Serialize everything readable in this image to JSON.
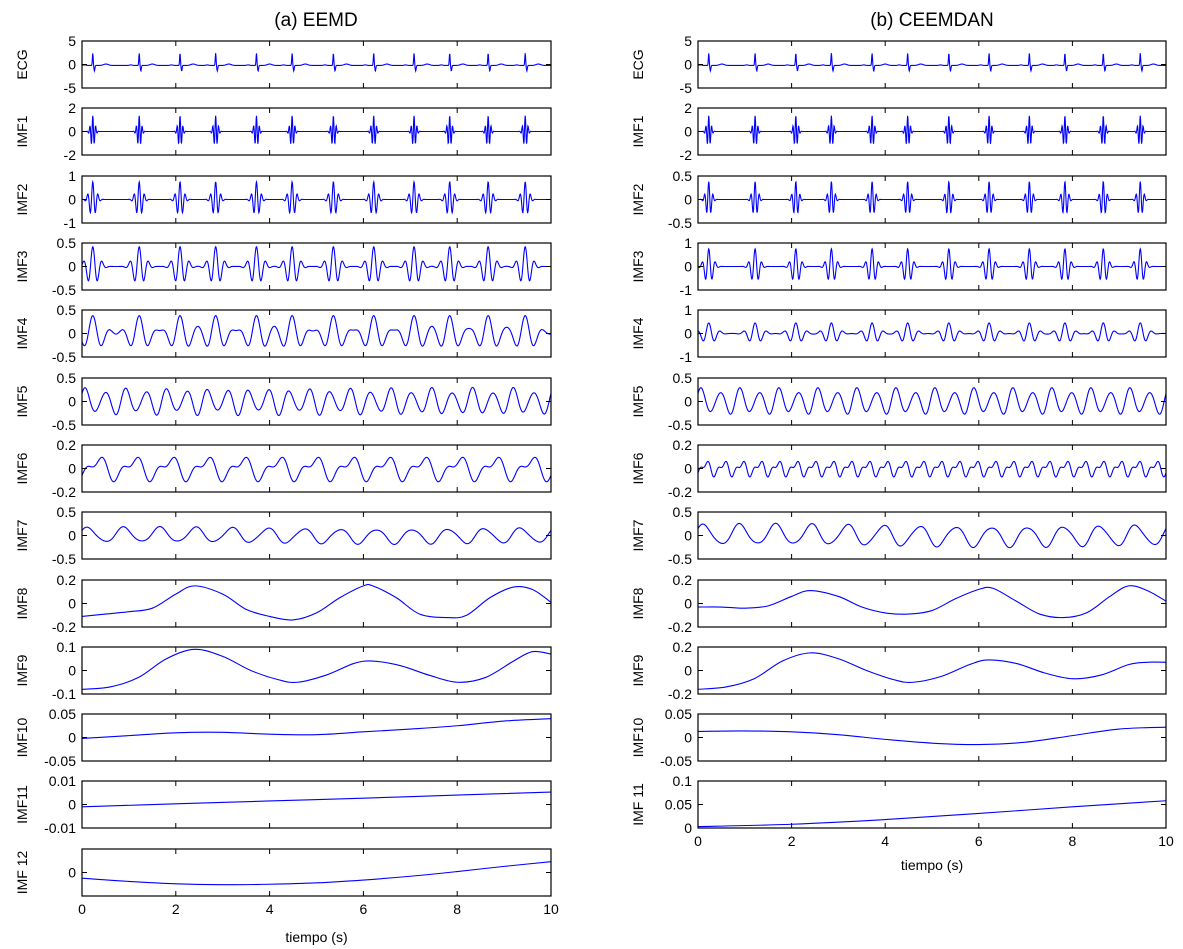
{
  "chart_data": [
    {
      "type": "line",
      "title": "(a) EEMD",
      "xlabel": "tiempo (s)",
      "xlim": [
        0,
        10
      ],
      "xticks": [
        "0",
        "2",
        "4",
        "6",
        "8",
        "10"
      ],
      "line_color": "#0000ff",
      "beat_times": [
        0.23,
        1.22,
        2.09,
        2.85,
        3.72,
        4.48,
        5.36,
        6.22,
        7.08,
        7.84,
        8.66,
        9.45
      ],
      "subplots": [
        {
          "ylabel": "ECG",
          "ylim": [
            -5,
            5
          ],
          "yticks": [
            "5",
            "0",
            "-5"
          ],
          "kind": "ecg",
          "amplitude": 2.6,
          "baseline": -0.2
        },
        {
          "ylabel": "IMF1",
          "ylim": [
            -2,
            2
          ],
          "yticks": [
            "2",
            "0",
            "-2"
          ],
          "kind": "burst",
          "amplitude": 1.35,
          "freq_hz": 16,
          "width_s": 0.06
        },
        {
          "ylabel": "IMF2",
          "ylim": [
            -1,
            1
          ],
          "yticks": [
            "1",
            "0",
            "-1"
          ],
          "kind": "burst",
          "amplitude": 0.75,
          "freq_hz": 9,
          "width_s": 0.1
        },
        {
          "ylabel": "IMF3",
          "ylim": [
            -0.5,
            0.5
          ],
          "yticks": [
            "0.5",
            "0",
            "-0.5"
          ],
          "kind": "burst",
          "amplitude": 0.42,
          "freq_hz": 5,
          "width_s": 0.17
        },
        {
          "ylabel": "IMF4",
          "ylim": [
            -0.5,
            0.5
          ],
          "yticks": [
            "0.5",
            "0",
            "-0.5"
          ],
          "kind": "burst",
          "amplitude": 0.38,
          "freq_hz": 2.6,
          "width_s": 0.3
        },
        {
          "ylabel": "IMF5",
          "ylim": [
            -0.5,
            0.5
          ],
          "yticks": [
            "0.5",
            "0",
            "-0.5"
          ],
          "kind": "wave",
          "amplitude": 0.3,
          "freq_hz": 2.3
        },
        {
          "ylabel": "IMF6",
          "ylim": [
            -0.2,
            0.2
          ],
          "yticks": [
            "0.2",
            "0",
            "-0.2"
          ],
          "kind": "wave2",
          "amplitude": 0.11,
          "freq_hz": 1.3
        },
        {
          "ylabel": "IMF7",
          "ylim": [
            -0.5,
            0.5
          ],
          "yticks": [
            "0.5",
            "0",
            "-0.5"
          ],
          "kind": "wave",
          "amplitude": 0.19,
          "freq_hz": 1.3
        },
        {
          "ylabel": "IMF8",
          "kind": "curve",
          "ylim": [
            -0.2,
            0.2
          ],
          "yticks": [
            "0.2",
            "0",
            "-0.2"
          ],
          "x": [
            0,
            0.5,
            1.0,
            1.5,
            2.0,
            2.4,
            3.0,
            3.5,
            4.0,
            4.5,
            5.0,
            5.5,
            6.0,
            6.2,
            6.7,
            7.2,
            7.8,
            8.2,
            8.7,
            9.2,
            9.6,
            10
          ],
          "y": [
            -0.11,
            -0.09,
            -0.07,
            -0.04,
            0.08,
            0.15,
            0.08,
            -0.05,
            -0.11,
            -0.14,
            -0.08,
            0.05,
            0.15,
            0.15,
            0.05,
            -0.09,
            -0.12,
            -0.1,
            0.05,
            0.14,
            0.12,
            0.01
          ]
        },
        {
          "ylabel": "IMF9",
          "kind": "curve",
          "ylim": [
            -0.1,
            0.1
          ],
          "yticks": [
            "0.1",
            "0",
            "-0.1"
          ],
          "x": [
            0,
            0.6,
            1.2,
            1.8,
            2.4,
            3.0,
            3.6,
            4.2,
            4.6,
            5.2,
            5.8,
            6.2,
            6.8,
            7.4,
            8.0,
            8.6,
            9.2,
            9.6,
            10
          ],
          "y": [
            -0.08,
            -0.07,
            -0.03,
            0.05,
            0.09,
            0.06,
            0.0,
            -0.04,
            -0.05,
            -0.02,
            0.03,
            0.04,
            0.02,
            -0.02,
            -0.05,
            -0.03,
            0.04,
            0.08,
            0.07
          ]
        },
        {
          "ylabel": "IMF10",
          "kind": "curve",
          "ylim": [
            -0.05,
            0.05
          ],
          "yticks": [
            "0.05",
            "0",
            "-0.05"
          ],
          "x": [
            0,
            1,
            2,
            3,
            4,
            5,
            6,
            7,
            8,
            9,
            10
          ],
          "y": [
            -0.002,
            0.004,
            0.01,
            0.011,
            0.007,
            0.006,
            0.012,
            0.018,
            0.025,
            0.035,
            0.04
          ]
        },
        {
          "ylabel": "IMF11",
          "kind": "curve",
          "ylim": [
            -0.01,
            0.01
          ],
          "yticks": [
            "0.01",
            "0",
            "-0.01"
          ],
          "x": [
            0,
            2,
            4,
            6,
            8,
            10
          ],
          "y": [
            -0.001,
            0.0003,
            0.0015,
            0.0027,
            0.004,
            0.0053
          ]
        },
        {
          "ylabel": "IMF 12",
          "kind": "curve",
          "ylim": [
            0,
            1
          ],
          "yticks": [
            "",
            "0",
            ""
          ],
          "x": [
            0,
            1,
            2,
            3,
            4,
            5,
            6,
            7,
            8,
            9,
            10
          ],
          "y": [
            0.38,
            0.31,
            0.26,
            0.24,
            0.25,
            0.28,
            0.34,
            0.42,
            0.52,
            0.63,
            0.73
          ]
        }
      ]
    },
    {
      "type": "line",
      "title": "(b) CEEMDAN",
      "xlabel": "tiempo (s)",
      "xlim": [
        0,
        10
      ],
      "xticks": [
        "0",
        "2",
        "4",
        "6",
        "8",
        "10"
      ],
      "line_color": "#0000ff",
      "beat_times": [
        0.23,
        1.22,
        2.09,
        2.85,
        3.72,
        4.48,
        5.36,
        6.22,
        7.08,
        7.84,
        8.66,
        9.45
      ],
      "subplots": [
        {
          "ylabel": "ECG",
          "ylim": [
            -5,
            5
          ],
          "yticks": [
            "5",
            "0",
            "-5"
          ],
          "kind": "ecg",
          "amplitude": 2.6,
          "baseline": -0.2
        },
        {
          "ylabel": "IMF1",
          "ylim": [
            -2,
            2
          ],
          "yticks": [
            "2",
            "0",
            "-2"
          ],
          "kind": "burst",
          "amplitude": 1.35,
          "freq_hz": 16,
          "width_s": 0.06
        },
        {
          "ylabel": "IMF2",
          "ylim": [
            -0.5,
            0.5
          ],
          "yticks": [
            "0.5",
            "0",
            "-0.5"
          ],
          "kind": "burst",
          "amplitude": 0.38,
          "freq_hz": 11,
          "width_s": 0.08
        },
        {
          "ylabel": "IMF3",
          "ylim": [
            -1,
            1
          ],
          "yticks": [
            "1",
            "0",
            "-1"
          ],
          "kind": "burst",
          "amplitude": 0.75,
          "freq_hz": 7,
          "width_s": 0.12
        },
        {
          "ylabel": "IMF4",
          "ylim": [
            -1,
            1
          ],
          "yticks": [
            "1",
            "0",
            "-1"
          ],
          "kind": "burst",
          "amplitude": 0.45,
          "freq_hz": 4,
          "width_s": 0.2
        },
        {
          "ylabel": "IMF5",
          "ylim": [
            -0.5,
            0.5
          ],
          "yticks": [
            "0.5",
            "0",
            "-0.5"
          ],
          "kind": "wave",
          "amplitude": 0.3,
          "freq_hz": 2.4
        },
        {
          "ylabel": "IMF6",
          "ylim": [
            -0.2,
            0.2
          ],
          "yticks": [
            "0.2",
            "0",
            "-0.2"
          ],
          "kind": "wave2",
          "amplitude": 0.07,
          "freq_hz": 2.6
        },
        {
          "ylabel": "IMF7",
          "ylim": [
            -0.5,
            0.5
          ],
          "yticks": [
            "0.5",
            "0",
            "-0.5"
          ],
          "kind": "wave",
          "amplitude": 0.26,
          "freq_hz": 1.3
        },
        {
          "ylabel": "IMF8",
          "kind": "curve",
          "ylim": [
            -0.2,
            0.2
          ],
          "yticks": [
            "0.2",
            "0",
            "-0.2"
          ],
          "x": [
            0,
            0.5,
            1.0,
            1.5,
            2.0,
            2.4,
            3.0,
            3.5,
            4.0,
            4.5,
            5.0,
            5.5,
            6.0,
            6.3,
            6.8,
            7.3,
            7.8,
            8.3,
            8.8,
            9.2,
            9.6,
            10
          ],
          "y": [
            -0.03,
            -0.03,
            -0.04,
            -0.02,
            0.06,
            0.11,
            0.06,
            -0.03,
            -0.08,
            -0.09,
            -0.06,
            0.04,
            0.12,
            0.13,
            0.02,
            -0.09,
            -0.12,
            -0.08,
            0.06,
            0.15,
            0.11,
            0.02
          ]
        },
        {
          "ylabel": "IMF9",
          "kind": "curve",
          "ylim": [
            -0.2,
            0.2
          ],
          "yticks": [
            "0.2",
            "0",
            "-0.2"
          ],
          "x": [
            0,
            0.6,
            1.2,
            1.8,
            2.4,
            3.0,
            3.6,
            4.2,
            4.6,
            5.2,
            5.8,
            6.2,
            6.8,
            7.4,
            8.0,
            8.6,
            9.2,
            9.6,
            10
          ],
          "y": [
            -0.16,
            -0.14,
            -0.07,
            0.08,
            0.15,
            0.1,
            0.0,
            -0.08,
            -0.1,
            -0.05,
            0.05,
            0.09,
            0.06,
            -0.02,
            -0.07,
            -0.04,
            0.05,
            0.07,
            0.07
          ]
        },
        {
          "ylabel": "IMF10",
          "kind": "curve",
          "ylim": [
            -0.05,
            0.05
          ],
          "yticks": [
            "0.05",
            "0",
            "-0.05"
          ],
          "x": [
            0,
            1,
            2,
            3,
            4,
            5,
            6,
            7,
            8,
            9,
            10
          ],
          "y": [
            0.013,
            0.014,
            0.012,
            0.006,
            -0.004,
            -0.012,
            -0.015,
            -0.01,
            0.004,
            0.018,
            0.022
          ]
        },
        {
          "ylabel": "IMF 11",
          "kind": "curve",
          "ylim": [
            0,
            0.1
          ],
          "yticks": [
            "0.1",
            "0.05",
            "0"
          ],
          "x": [
            0,
            2,
            4,
            6,
            8,
            10
          ],
          "y": [
            0.003,
            0.008,
            0.018,
            0.031,
            0.045,
            0.058
          ]
        }
      ]
    }
  ]
}
